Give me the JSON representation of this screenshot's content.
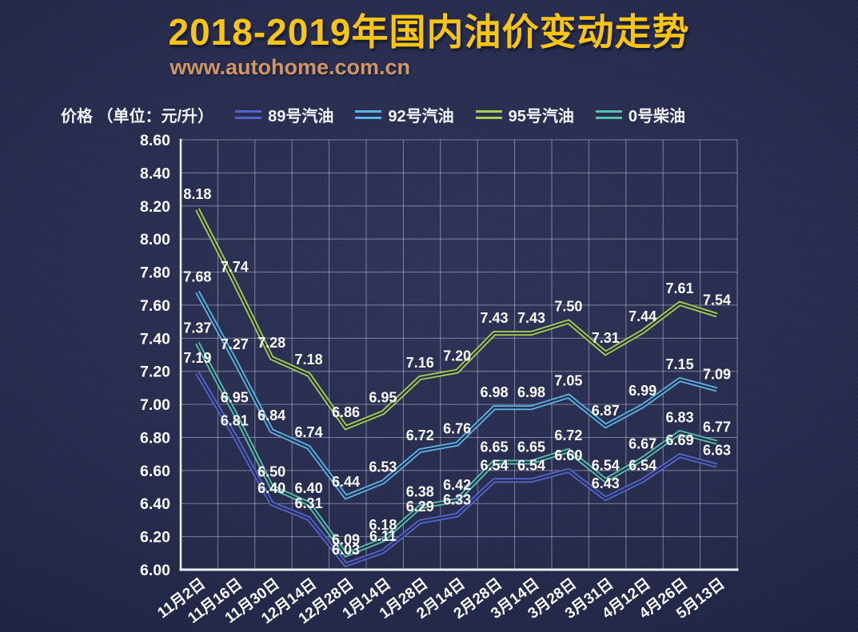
{
  "header": {
    "title": "2018-2019年国内油价变动走势",
    "url": "www.autohome.com.cn"
  },
  "legend": {
    "unit_label": "价格 （单位：元/升）",
    "position": "top"
  },
  "colors": {
    "background": "#272c4e",
    "grid": "#cdd4ea",
    "axis": "#f0f2fa",
    "label_text": "#ffffff",
    "title": "#f7c512",
    "url": "#cf9768"
  },
  "chart_data": {
    "type": "line",
    "title": "2018-2019年国内油价变动走势",
    "unit": "元/升",
    "x": [
      "11月2日",
      "11月16日",
      "11月30日",
      "12月14日",
      "12月28日",
      "1月14日",
      "1月28日",
      "2月14日",
      "2月28日",
      "3月14日",
      "3月28日",
      "3月31日",
      "4月12日",
      "4月26日",
      "5月13日"
    ],
    "series": [
      {
        "id": "89-gasoline",
        "name": "89号汽油",
        "color": "#5164cb",
        "values": [
          7.19,
          6.81,
          6.4,
          6.31,
          6.03,
          6.11,
          6.29,
          6.33,
          6.54,
          6.54,
          6.6,
          6.43,
          6.54,
          6.69,
          6.63
        ]
      },
      {
        "id": "92-gasoline",
        "name": "92号汽油",
        "color": "#57b4e3",
        "values": [
          7.68,
          7.27,
          6.84,
          6.74,
          6.44,
          6.53,
          6.72,
          6.76,
          6.98,
          6.98,
          7.05,
          6.87,
          6.99,
          7.15,
          7.09
        ]
      },
      {
        "id": "95-gasoline",
        "name": "95号汽油",
        "color": "#a4d04b",
        "values": [
          8.18,
          7.74,
          7.28,
          7.18,
          6.86,
          6.95,
          7.16,
          7.2,
          7.43,
          7.43,
          7.5,
          7.31,
          7.44,
          7.61,
          7.54
        ]
      },
      {
        "id": "0-diesel",
        "name": "0号柴油",
        "color": "#55c1ab",
        "values": [
          7.37,
          6.95,
          6.5,
          6.4,
          6.09,
          6.18,
          6.38,
          6.42,
          6.65,
          6.65,
          6.72,
          6.54,
          6.67,
          6.83,
          6.77
        ]
      }
    ],
    "ylim": [
      6.0,
      8.6
    ],
    "yticks": [
      "8.60",
      "8.40",
      "8.20",
      "8.00",
      "7.80",
      "7.60",
      "7.40",
      "7.20",
      "7.00",
      "6.80",
      "6.60",
      "6.40",
      "6.20",
      "6.00"
    ],
    "grid": true,
    "data_labels": true,
    "legend_position": "top"
  }
}
